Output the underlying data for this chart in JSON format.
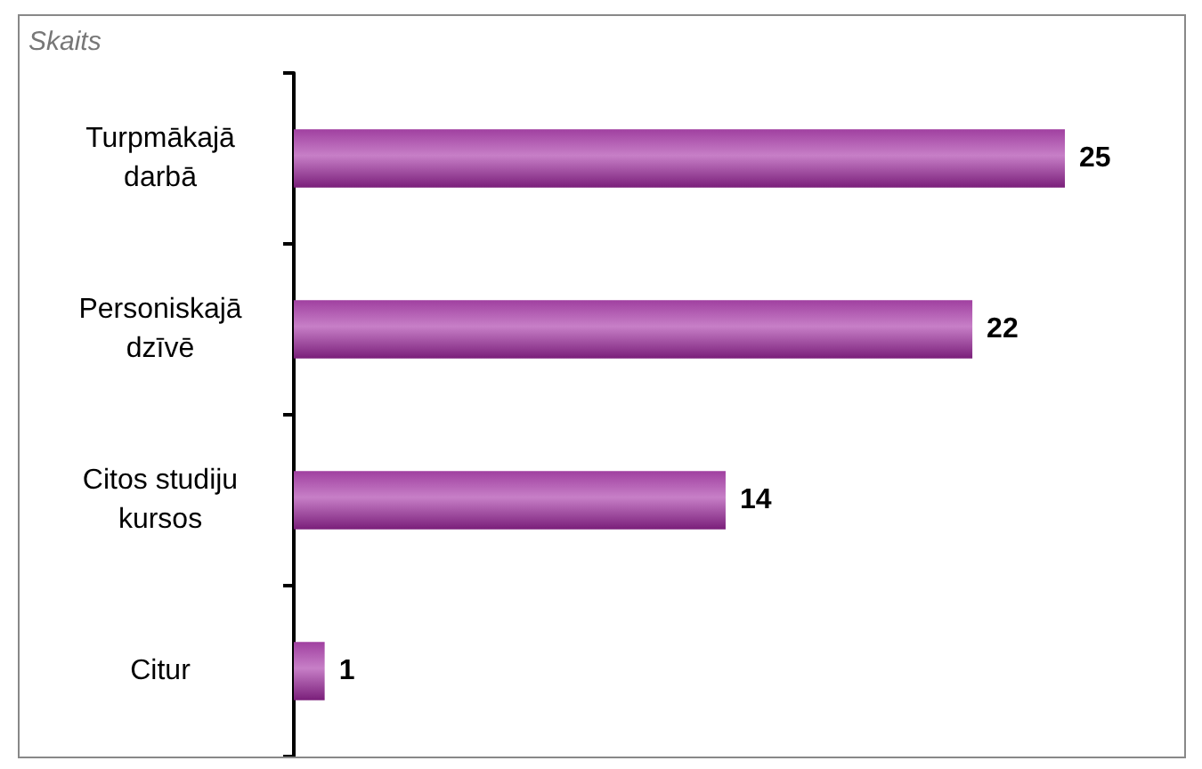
{
  "chart_data": {
    "type": "bar",
    "orientation": "horizontal",
    "title": "Skaits",
    "categories": [
      "Turpmākajā darbā",
      "Personiskajā dzīvē",
      "Citos studiju kursos",
      "Citur"
    ],
    "values": [
      25,
      22,
      14,
      1
    ],
    "color": "#a040a0",
    "data_labels": true
  }
}
